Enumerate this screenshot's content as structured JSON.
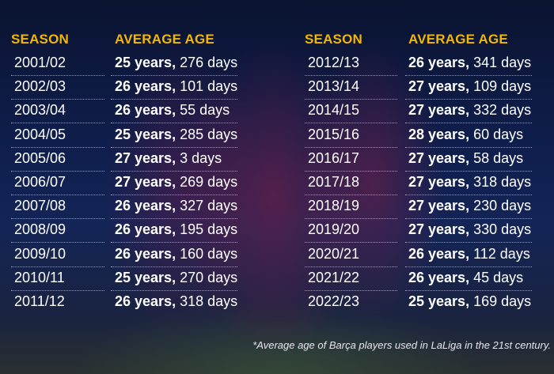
{
  "tables": [
    {
      "header": [
        "SEASON",
        "AVERAGE AGE"
      ],
      "rows": [
        [
          "2001/02",
          "25 years,",
          "276 days"
        ],
        [
          "2002/03",
          "26 years,",
          "101 days"
        ],
        [
          "2003/04",
          "26 years,",
          "55 days"
        ],
        [
          "2004/05",
          "25 years,",
          "285 days"
        ],
        [
          "2005/06",
          "27 years,",
          "3 days"
        ],
        [
          "2006/07",
          "27 years,",
          "269 days"
        ],
        [
          "2007/08",
          "26 years,",
          "327 days"
        ],
        [
          "2008/09",
          "26 years,",
          "195 days"
        ],
        [
          "2009/10",
          "26 years,",
          "160 days"
        ],
        [
          "2010/11",
          "25 years,",
          "270 days"
        ],
        [
          "2011/12",
          "26 years,",
          "318 days"
        ]
      ]
    },
    {
      "header": [
        "SEASON",
        "AVERAGE AGE"
      ],
      "rows": [
        [
          "2012/13",
          "26 years,",
          "341 days"
        ],
        [
          "2013/14",
          "27 years,",
          "109 days"
        ],
        [
          "2014/15",
          "27 years,",
          "332 days"
        ],
        [
          "2015/16",
          "28 years,",
          "60 days"
        ],
        [
          "2016/17",
          "27 years,",
          "58 days"
        ],
        [
          "2017/18",
          "27 years,",
          "318 days"
        ],
        [
          "2018/19",
          "27 years,",
          "230 days"
        ],
        [
          "2019/20",
          "27 years,",
          "330 days"
        ],
        [
          "2020/21",
          "26 years,",
          "112 days"
        ],
        [
          "2021/22",
          "26 years,",
          "45 days"
        ],
        [
          "2022/23",
          "25 years,",
          "169 days"
        ]
      ]
    }
  ],
  "footnote": "*Average age of Barça players used in LaLiga in the 21st century."
}
